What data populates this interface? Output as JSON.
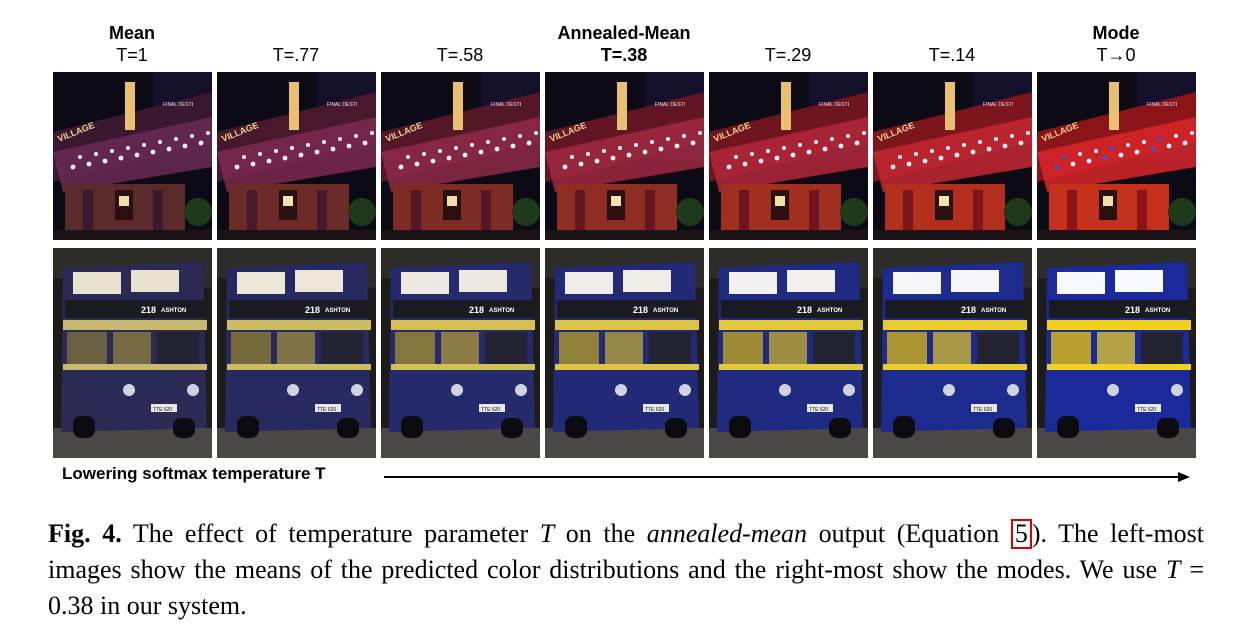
{
  "columns": [
    {
      "title": "Mean",
      "temp": "T=1",
      "temp_bold": false,
      "ratio": 0.0
    },
    {
      "title": "",
      "temp": "T=.77",
      "temp_bold": false,
      "ratio": 0.16
    },
    {
      "title": "",
      "temp": "T=.58",
      "temp_bold": false,
      "ratio": 0.33
    },
    {
      "title": "Annealed-Mean",
      "temp": "T=.38",
      "temp_bold": true,
      "ratio": 0.5
    },
    {
      "title": "",
      "temp": "T=.29",
      "temp_bold": false,
      "ratio": 0.66
    },
    {
      "title": "",
      "temp": "T=.14",
      "temp_bold": false,
      "ratio": 0.83
    },
    {
      "title": "Mode",
      "temp": "T→0",
      "temp_bold": false,
      "ratio": 1.0
    }
  ],
  "rows": [
    {
      "subject": "theater-marquee"
    },
    {
      "subject": "double-decker-bus"
    }
  ],
  "bus_sign": {
    "route": "218",
    "destination": "ASHTON",
    "plate": "TTE 620"
  },
  "marquee_sign": {
    "left": "VILLAGE",
    "right": "FINAL DESTI"
  },
  "axis": {
    "label": "Lowering softmax temperature T"
  },
  "caption": {
    "fig_label": "Fig. 4.",
    "part1": " The effect of temperature parameter ",
    "T1": "T",
    "part2": " on the ",
    "italic": "annealed-mean",
    "part3": " output (Equation ",
    "ref": "5",
    "part4": "). The left-most images show the means of the predicted color distributions and the right-most show the modes. We use ",
    "T2": "T",
    "part5": " = 0.38 in our system."
  },
  "colors": {
    "reference_box": "#e00000"
  }
}
